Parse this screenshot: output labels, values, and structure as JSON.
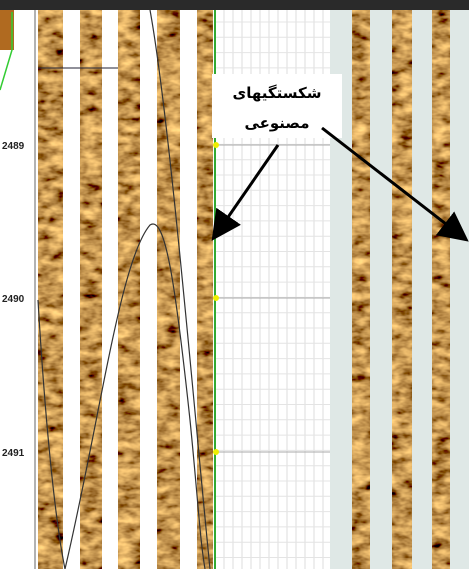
{
  "depth_labels": [
    "2489",
    "2490",
    "2491"
  ],
  "annotation": {
    "line1": "شکستگیهای",
    "line2": "مصنوعی"
  }
}
